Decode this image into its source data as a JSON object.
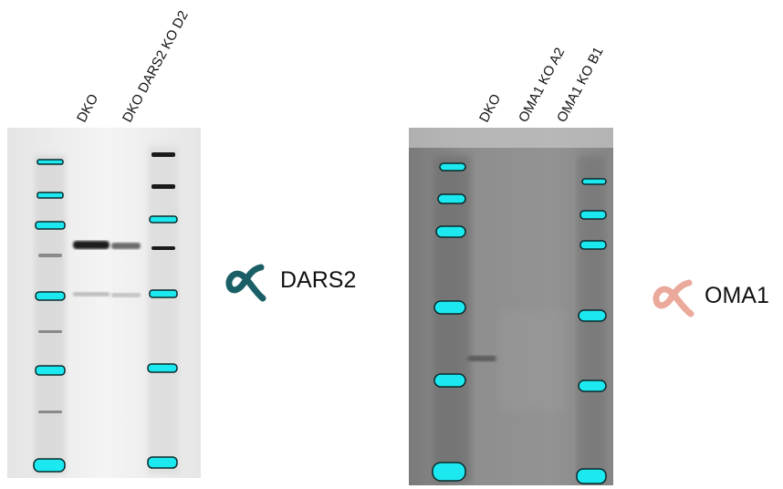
{
  "left_blot": {
    "lanes": [
      "DKO",
      "DKO DARS2 KO D2"
    ],
    "antibody": {
      "label": "DARS2",
      "icon": "antibody-icon",
      "icon_color": "#1a5f66"
    }
  },
  "right_blot": {
    "lanes": [
      "DKO",
      "OMA1 KO A2",
      "OMA1 KO B1"
    ],
    "antibody": {
      "label": "OMA1",
      "icon": "antibody-icon",
      "icon_color": "#e8a090"
    }
  },
  "colors": {
    "ladder": "#1ce8f0",
    "left_membrane": "#f1f1f1",
    "right_membrane": "#8c8c8c"
  }
}
